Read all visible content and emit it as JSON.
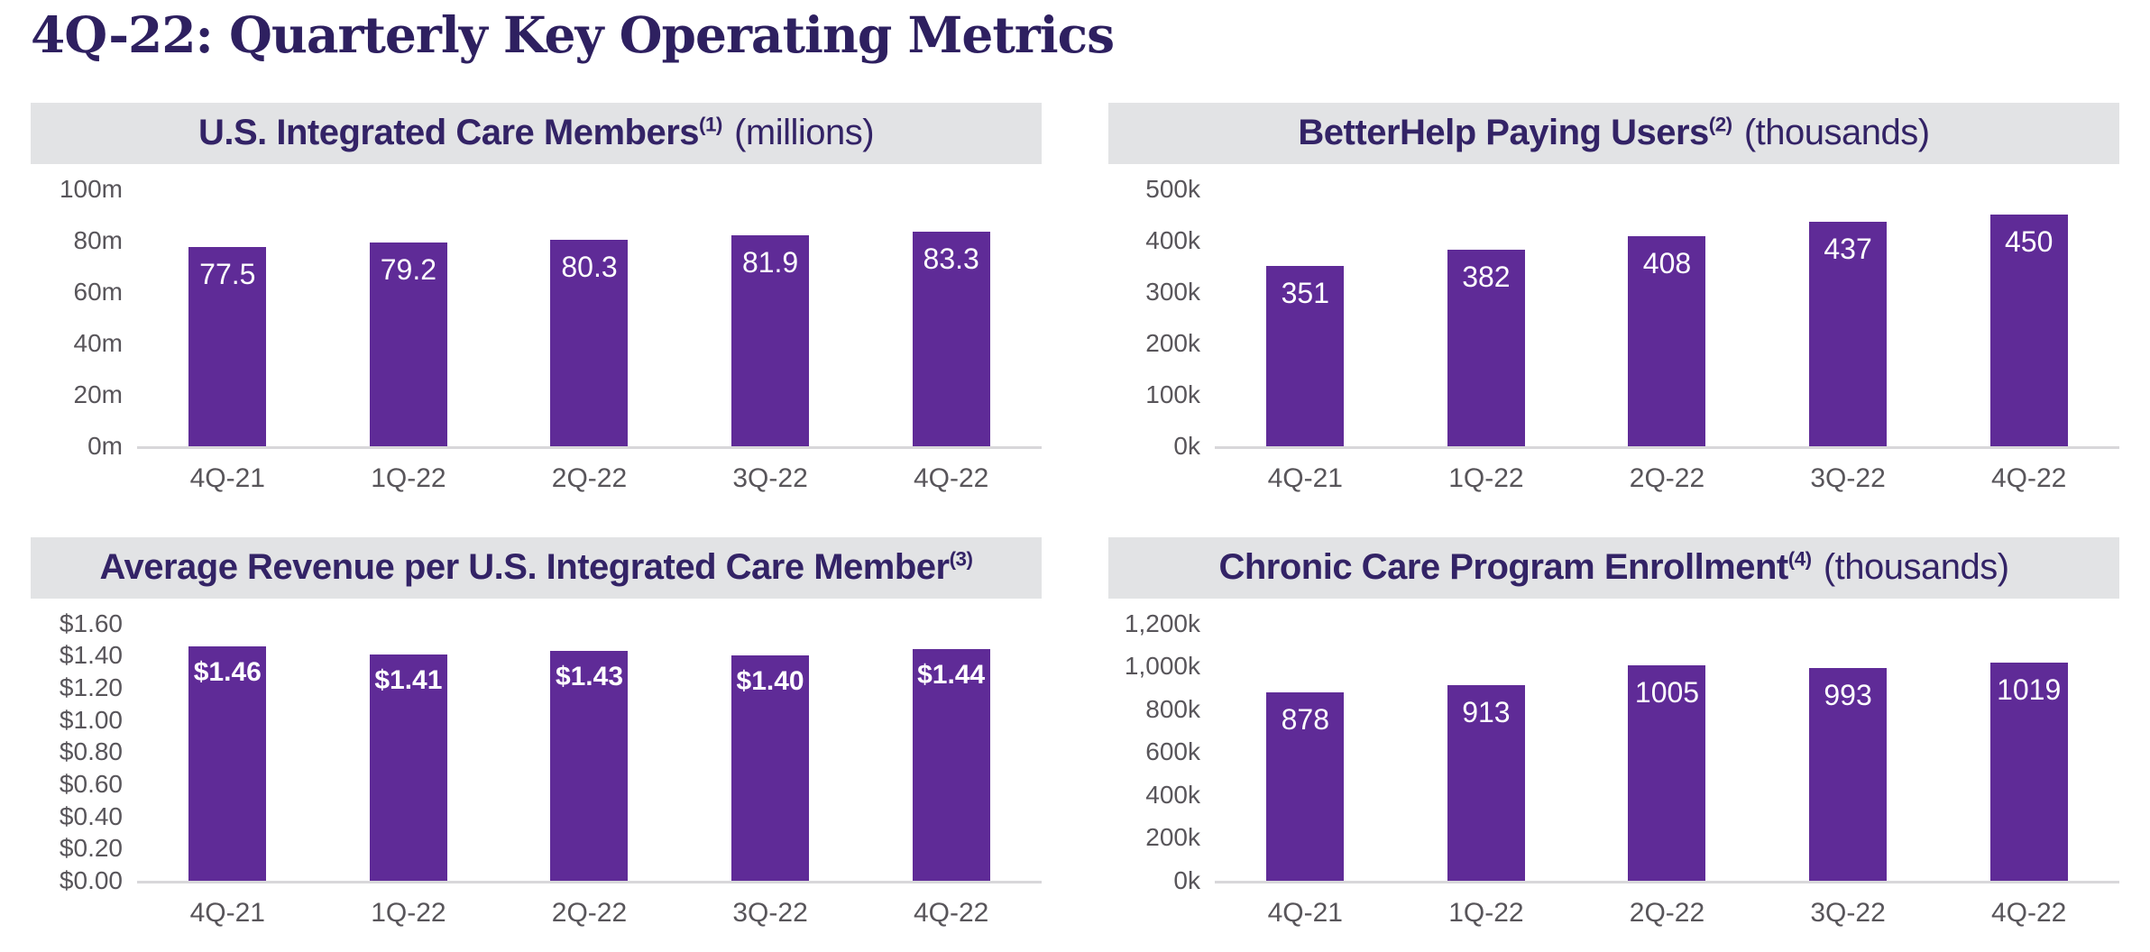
{
  "slide": {
    "title": "4Q-22: Quarterly Key Operating Metrics"
  },
  "theme": {
    "bar_color": "#5F2B97",
    "band_background": "#E2E3E5",
    "heading_color": "#2E2060",
    "panel_title_color": "#332366",
    "axis_text_color": "#58555A",
    "bar_label_color": "#FFFFFF",
    "baseline_color": "#D8D7DA"
  },
  "chart_data": [
    {
      "type": "bar",
      "title": "U.S. Integrated Care Members",
      "footnote_marker": "(1)",
      "unit_suffix": "(millions)",
      "categories": [
        "4Q-21",
        "1Q-22",
        "2Q-22",
        "3Q-22",
        "4Q-22"
      ],
      "values": [
        77.5,
        79.2,
        80.3,
        81.9,
        83.3
      ],
      "value_labels": [
        "77.5",
        "79.2",
        "80.3",
        "81.9",
        "83.3"
      ],
      "ylim": [
        0,
        100
      ],
      "yticks": [
        {
          "value": 100,
          "label": "100m"
        },
        {
          "value": 80,
          "label": "80m"
        },
        {
          "value": 60,
          "label": "60m"
        },
        {
          "value": 40,
          "label": "40m"
        },
        {
          "value": 20,
          "label": "20m"
        },
        {
          "value": 0,
          "label": "0m"
        }
      ],
      "bold_value_labels": false,
      "grid": false,
      "legend": false
    },
    {
      "type": "bar",
      "title": "BetterHelp Paying Users",
      "footnote_marker": "(2)",
      "unit_suffix": "(thousands)",
      "categories": [
        "4Q-21",
        "1Q-22",
        "2Q-22",
        "3Q-22",
        "4Q-22"
      ],
      "values": [
        351,
        382,
        408,
        437,
        450
      ],
      "value_labels": [
        "351",
        "382",
        "408",
        "437",
        "450"
      ],
      "ylim": [
        0,
        500
      ],
      "yticks": [
        {
          "value": 500,
          "label": "500k"
        },
        {
          "value": 400,
          "label": "400k"
        },
        {
          "value": 300,
          "label": "300k"
        },
        {
          "value": 200,
          "label": "200k"
        },
        {
          "value": 100,
          "label": "100k"
        },
        {
          "value": 0,
          "label": "0k"
        }
      ],
      "bold_value_labels": false,
      "grid": false,
      "legend": false
    },
    {
      "type": "bar",
      "title": "Average Revenue per U.S. Integrated Care Member",
      "footnote_marker": "(3)",
      "unit_suffix": "",
      "categories": [
        "4Q-21",
        "1Q-22",
        "2Q-22",
        "3Q-22",
        "4Q-22"
      ],
      "values": [
        1.46,
        1.41,
        1.43,
        1.4,
        1.44
      ],
      "value_labels": [
        "$1.46",
        "$1.41",
        "$1.43",
        "$1.40",
        "$1.44"
      ],
      "ylim": [
        0,
        1.6
      ],
      "yticks": [
        {
          "value": 1.6,
          "label": "$1.60"
        },
        {
          "value": 1.4,
          "label": "$1.40"
        },
        {
          "value": 1.2,
          "label": "$1.20"
        },
        {
          "value": 1.0,
          "label": "$1.00"
        },
        {
          "value": 0.8,
          "label": "$0.80"
        },
        {
          "value": 0.6,
          "label": "$0.60"
        },
        {
          "value": 0.4,
          "label": "$0.40"
        },
        {
          "value": 0.2,
          "label": "$0.20"
        },
        {
          "value": 0.0,
          "label": "$0.00"
        }
      ],
      "bold_value_labels": true,
      "grid": false,
      "legend": false
    },
    {
      "type": "bar",
      "title": "Chronic Care Program Enrollment",
      "footnote_marker": "(4)",
      "unit_suffix": "(thousands)",
      "categories": [
        "4Q-21",
        "1Q-22",
        "2Q-22",
        "3Q-22",
        "4Q-22"
      ],
      "values": [
        878,
        913,
        1005,
        993,
        1019
      ],
      "value_labels": [
        "878",
        "913",
        "1005",
        "993",
        "1019"
      ],
      "ylim": [
        0,
        1200
      ],
      "yticks": [
        {
          "value": 1200,
          "label": "1,200k"
        },
        {
          "value": 1000,
          "label": "1,000k"
        },
        {
          "value": 800,
          "label": "800k"
        },
        {
          "value": 600,
          "label": "600k"
        },
        {
          "value": 400,
          "label": "400k"
        },
        {
          "value": 200,
          "label": "200k"
        },
        {
          "value": 0,
          "label": "0k"
        }
      ],
      "bold_value_labels": false,
      "grid": false,
      "legend": false
    }
  ]
}
